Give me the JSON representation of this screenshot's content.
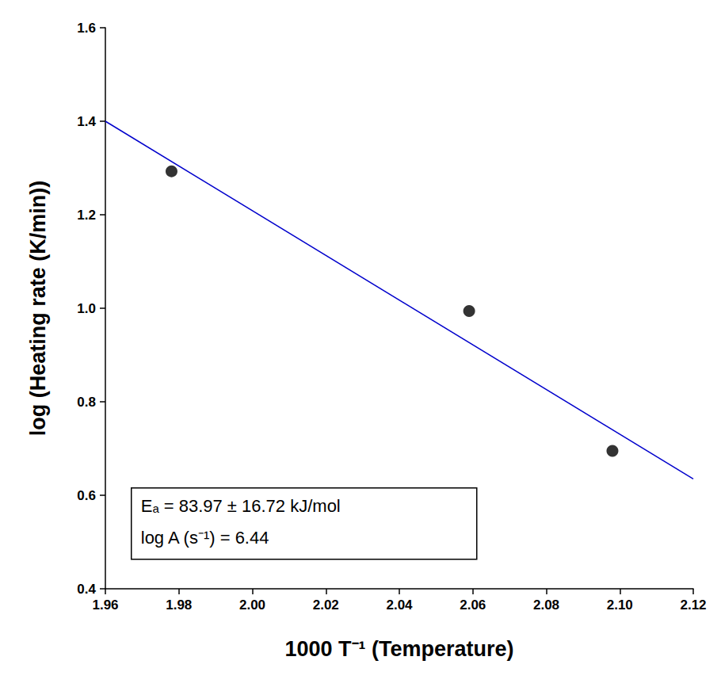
{
  "chart_data": {
    "type": "scatter",
    "x_label": "1000 T⁻¹ (Temperature)",
    "y_label": "log (Heating rate (K/min))",
    "xlim": [
      1.96,
      2.12
    ],
    "xticks": [
      1.96,
      1.98,
      {
        "value": 2,
        "label": "2.00"
      },
      2.02,
      2.04,
      2.06,
      2.08,
      {
        "value": 2.1,
        "label": "2.10"
      },
      2.12
    ],
    "ylim": [
      0.4,
      1.6
    ],
    "yticks": [
      0.4,
      0.6,
      0.8,
      {
        "value": 1,
        "label": "1.0"
      },
      1.2,
      1.4,
      1.6
    ],
    "grid": false,
    "series": [
      {
        "type": "scatter",
        "color": "#000000",
        "marker": "circle",
        "x": [
          1.978,
          2.059,
          2.098
        ],
        "values": [
          1.293,
          0.994,
          0.695
        ]
      },
      {
        "type": "line",
        "color": "#0000cc",
        "line_style": "solid",
        "x": [
          1.96,
          2.12
        ],
        "values": [
          1.4,
          0.635
        ]
      }
    ],
    "annotations": [
      "Eₐ = 83.97 ± 16.72 kJ/mol",
      "log A (s⁻¹) = 6.44"
    ]
  }
}
